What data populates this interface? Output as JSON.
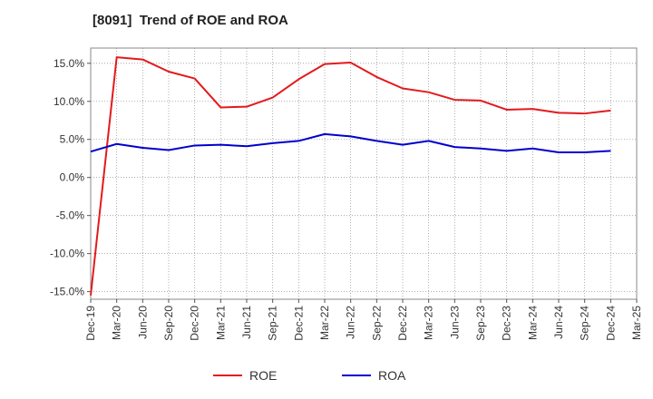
{
  "chart_data": {
    "type": "line",
    "title": "[8091]  Trend of ROE and ROA",
    "xlabel": "",
    "ylabel": "",
    "x_ticks": [
      "Dec-19",
      "Mar-20",
      "Jun-20",
      "Sep-20",
      "Dec-20",
      "Mar-21",
      "Jun-21",
      "Sep-21",
      "Dec-21",
      "Mar-22",
      "Jun-22",
      "Sep-22",
      "Dec-22",
      "Mar-23",
      "Jun-23",
      "Sep-23",
      "Dec-23",
      "Mar-24",
      "Jun-24",
      "Sep-24",
      "Dec-24",
      "Mar-25"
    ],
    "y_ticks": [
      15,
      10,
      5,
      0,
      -5,
      -10,
      -15
    ],
    "y_tick_labels": [
      "15.0%",
      "10.0%",
      "5.0%",
      "0.0%",
      "-5.0%",
      "-10.0%",
      "-15.0%"
    ],
    "ylim": [
      -16,
      17
    ],
    "grid": true,
    "legend_position": "bottom-center",
    "series": [
      {
        "name": "ROE",
        "color": "#e31a1c",
        "values": [
          -15.5,
          15.8,
          15.5,
          13.9,
          13.0,
          9.2,
          9.3,
          10.5,
          12.9,
          14.9,
          15.1,
          13.2,
          11.7,
          11.2,
          10.2,
          10.1,
          8.9,
          9.0,
          8.5,
          8.4,
          8.8,
          null
        ]
      },
      {
        "name": "ROA",
        "color": "#0000cc",
        "values": [
          3.4,
          4.4,
          3.9,
          3.6,
          4.2,
          4.3,
          4.1,
          4.5,
          4.8,
          5.7,
          5.4,
          4.8,
          4.3,
          4.8,
          4.0,
          3.8,
          3.5,
          3.8,
          3.3,
          3.3,
          3.5,
          null
        ]
      }
    ]
  }
}
